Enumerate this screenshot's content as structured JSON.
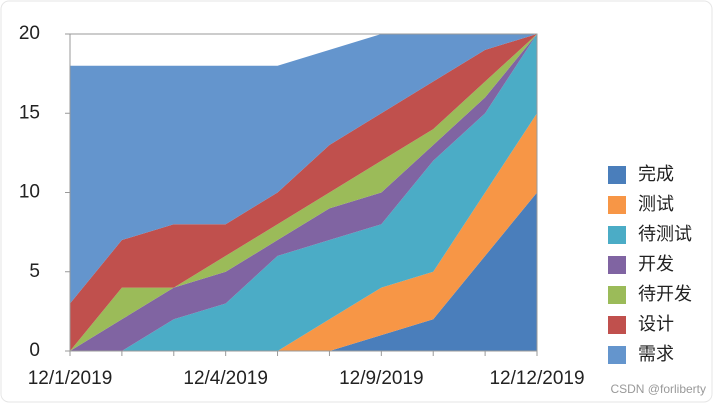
{
  "chart_data": {
    "type": "stacked_area",
    "categories": [
      "12/1/2019",
      null,
      null,
      "12/4/2019",
      null,
      null,
      "12/9/2019",
      null,
      null,
      "12/12/2019"
    ],
    "series": [
      {
        "name": "完成",
        "color": "#4a7ebb",
        "values": [
          0,
          0,
          0,
          0,
          0,
          0,
          1,
          2,
          6,
          10
        ]
      },
      {
        "name": "测试",
        "color": "#f79646",
        "values": [
          0,
          0,
          0,
          0,
          0,
          2,
          3,
          3,
          4,
          5
        ]
      },
      {
        "name": "待测试",
        "color": "#4bacc6",
        "values": [
          0,
          0,
          2,
          3,
          6,
          5,
          4,
          7,
          5,
          5
        ]
      },
      {
        "name": "开发",
        "color": "#8064a2",
        "values": [
          0,
          2,
          2,
          2,
          1,
          2,
          2,
          1,
          1,
          0
        ]
      },
      {
        "name": "待开发",
        "color": "#9bbb59",
        "values": [
          0,
          2,
          0,
          1,
          1,
          1,
          2,
          1,
          1,
          0
        ]
      },
      {
        "name": "设计",
        "color": "#c0504d",
        "values": [
          3,
          3,
          4,
          2,
          2,
          3,
          3,
          3,
          2,
          0
        ]
      },
      {
        "name": "需求",
        "color": "#6495cd",
        "values": [
          15,
          11,
          10,
          10,
          8,
          6,
          5,
          3,
          1,
          0
        ]
      }
    ],
    "ylim": [
      0,
      20
    ],
    "yticks": [
      0,
      5,
      10,
      15,
      20
    ],
    "grid": false,
    "legend": "right",
    "watermark": "CSDN @forliberty"
  }
}
